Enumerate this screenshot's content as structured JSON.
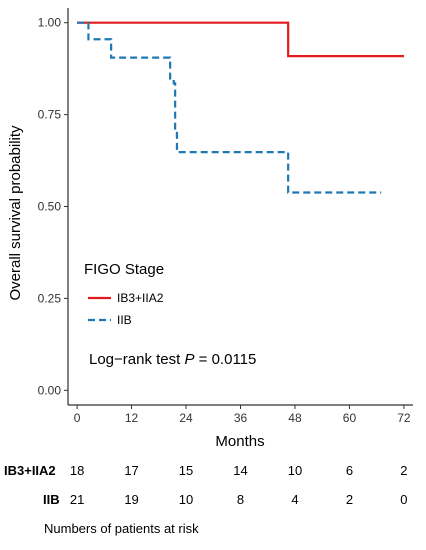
{
  "chart_data": {
    "type": "line",
    "xlabel": "Months",
    "ylabel": "Overall survival probability",
    "xlim": [
      -2,
      74
    ],
    "ylim": [
      -0.04,
      1.04
    ],
    "xticks": [
      0,
      12,
      24,
      36,
      48,
      60,
      72
    ],
    "xtick_labels": [
      "0",
      "12",
      "24",
      "36",
      "48",
      "60",
      "72"
    ],
    "yticks": [
      0,
      0.25,
      0.5,
      0.75,
      1
    ],
    "ytick_labels": [
      "0.00",
      "0.25",
      "0.50",
      "0.75",
      "1.00"
    ],
    "grid": false,
    "legend": {
      "title": "FIGO Stage",
      "placement": "lower-left"
    },
    "series": [
      {
        "name": "IB3+IIA2",
        "color": "#e41a1c",
        "style": "solid",
        "steps": [
          [
            0,
            1.0
          ],
          [
            46.5,
            0.909
          ],
          [
            72,
            0.909
          ]
        ]
      },
      {
        "name": "IIB",
        "color": "#1f78b4",
        "style": "dashed",
        "steps": [
          [
            0,
            1.0
          ],
          [
            2.5,
            0.955
          ],
          [
            7.5,
            0.905
          ],
          [
            20.5,
            0.845
          ],
          [
            21.3,
            0.835
          ],
          [
            21.6,
            0.705
          ],
          [
            22,
            0.648
          ],
          [
            46.5,
            0.538
          ],
          [
            67,
            0.538
          ]
        ]
      }
    ],
    "annotation": {
      "prefix": "Log−rank test ",
      "italic": "P",
      "suffix": " = 0.0115"
    },
    "risk_table": {
      "title": "Numbers of patients at risk",
      "times": [
        0,
        12,
        24,
        36,
        48,
        60,
        72
      ],
      "rows": [
        {
          "name": "IB3+IIA2",
          "values": [
            "18",
            "17",
            "15",
            "14",
            "10",
            "6",
            "2"
          ]
        },
        {
          "name": "IIB",
          "values": [
            "21",
            "19",
            "10",
            "8",
            "4",
            "2",
            "0"
          ]
        }
      ]
    }
  }
}
